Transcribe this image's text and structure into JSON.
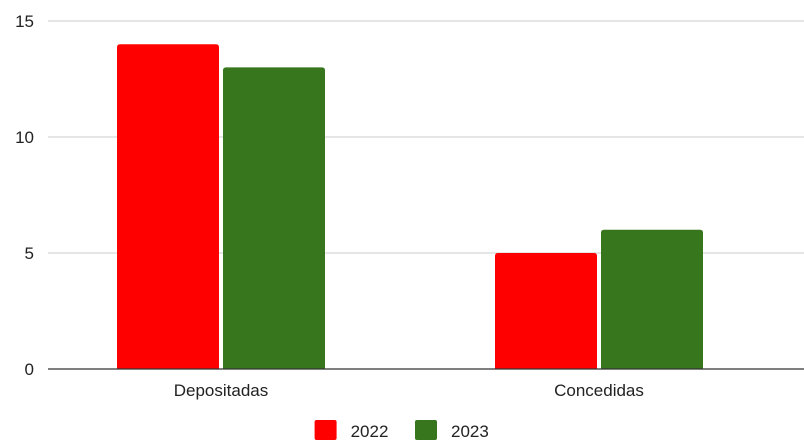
{
  "chart_data": {
    "type": "bar",
    "categories": [
      "Depositadas",
      "Concedidas"
    ],
    "series": [
      {
        "name": "2022",
        "values": [
          14,
          5
        ],
        "color": "#ff0000"
      },
      {
        "name": "2023",
        "values": [
          13,
          6
        ],
        "color": "#38761d"
      }
    ],
    "yticks": [
      "0",
      "5",
      "10",
      "15"
    ],
    "ylim": [
      0,
      15
    ],
    "grid": true,
    "legend_position": "bottom-center",
    "gridline_color": "#cccccc",
    "axis_color": "#333333"
  }
}
